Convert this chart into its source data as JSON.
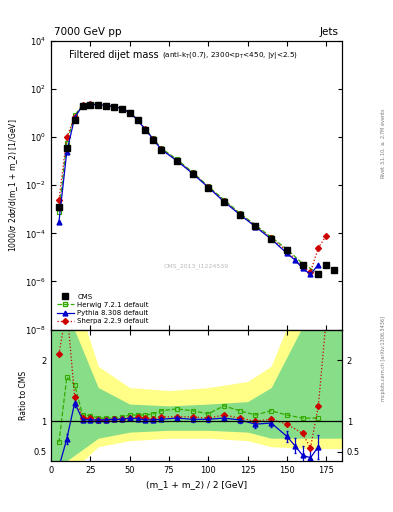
{
  "title_left": "7000 GeV pp",
  "title_right": "Jets",
  "plot_title_main": "Filtered dijet mass ",
  "plot_title_sub": "(anti-k_{T}(0.7), 2300<p_{T}<450, |y|<2.5)",
  "ylabel_main": "1000/σ 2dσ/d(m_1 + m_2) [1/GeV]",
  "ylabel_ratio": "Ratio to CMS",
  "xlabel": "(m_1 + m_2) / 2 [GeV]",
  "watermark": "CMS_2013_I1224539",
  "cms_x": [
    5,
    10,
    15,
    20,
    25,
    30,
    35,
    40,
    45,
    50,
    55,
    60,
    65,
    70,
    80,
    90,
    100,
    110,
    120,
    130,
    140,
    150,
    160,
    170,
    175,
    180
  ],
  "cms_y": [
    0.0012,
    0.35,
    5.0,
    20.0,
    22.0,
    22.0,
    20.0,
    18.0,
    15.0,
    10.0,
    5.0,
    2.0,
    0.8,
    0.3,
    0.1,
    0.03,
    0.008,
    0.002,
    0.0006,
    0.0002,
    6e-05,
    2e-05,
    5e-06,
    2e-06,
    5e-06,
    3e-06
  ],
  "cms_yerr": [
    0.0002,
    0.05,
    0.5,
    1.5,
    1.5,
    1.5,
    1.5,
    1.2,
    1.0,
    0.7,
    0.35,
    0.15,
    0.07,
    0.025,
    0.008,
    0.0025,
    0.0007,
    0.0002,
    5e-05,
    2e-05,
    6e-06,
    2e-06,
    5e-07,
    3e-07,
    1e-06,
    5e-07
  ],
  "herwig_x": [
    5,
    10,
    15,
    20,
    25,
    30,
    35,
    40,
    45,
    50,
    55,
    60,
    65,
    70,
    80,
    90,
    100,
    110,
    120,
    130,
    140,
    150,
    160,
    170
  ],
  "herwig_y": [
    0.0008,
    0.6,
    8.0,
    22.0,
    24.0,
    23.0,
    21.0,
    19.0,
    16.0,
    11.0,
    5.5,
    2.2,
    0.9,
    0.35,
    0.12,
    0.035,
    0.009,
    0.0025,
    0.0007,
    0.00022,
    7e-05,
    2.2e-05,
    5.5e-06,
    2.2e-06
  ],
  "pythia_x": [
    5,
    10,
    15,
    20,
    25,
    30,
    35,
    40,
    45,
    50,
    55,
    60,
    65,
    70,
    80,
    90,
    100,
    110,
    120,
    130,
    140,
    150,
    155,
    160,
    165,
    170
  ],
  "pythia_y": [
    0.0003,
    0.25,
    6.5,
    20.5,
    22.5,
    22.5,
    20.5,
    18.5,
    15.5,
    10.5,
    5.2,
    2.05,
    0.82,
    0.31,
    0.105,
    0.031,
    0.0082,
    0.0021,
    0.00061,
    0.00019,
    5.8e-05,
    1.5e-05,
    8e-06,
    3.5e-06,
    2e-06,
    5e-06
  ],
  "sherpa_x": [
    5,
    10,
    15,
    20,
    25,
    30,
    35,
    40,
    45,
    50,
    55,
    60,
    65,
    70,
    80,
    90,
    100,
    110,
    120,
    130,
    140,
    150,
    160,
    165,
    170,
    175
  ],
  "sherpa_y": [
    0.0025,
    1.0,
    7.0,
    21.0,
    23.0,
    22.5,
    20.5,
    18.5,
    15.5,
    10.5,
    5.3,
    2.1,
    0.83,
    0.32,
    0.107,
    0.032,
    0.0084,
    0.0022,
    0.00063,
    0.0002,
    6.2e-05,
    1.9e-05,
    4e-06,
    2.5e-06,
    2.5e-05,
    8e-05
  ],
  "ratio_herwig_x": [
    5,
    10,
    15,
    20,
    25,
    30,
    35,
    40,
    45,
    50,
    55,
    60,
    65,
    70,
    80,
    90,
    100,
    110,
    120,
    130,
    140,
    150,
    160,
    170
  ],
  "ratio_herwig_y": [
    0.65,
    1.72,
    1.6,
    1.1,
    1.09,
    1.05,
    1.05,
    1.05,
    1.07,
    1.1,
    1.1,
    1.1,
    1.12,
    1.17,
    1.2,
    1.17,
    1.12,
    1.25,
    1.17,
    1.1,
    1.17,
    1.1,
    1.05,
    1.05
  ],
  "ratio_pythia_x": [
    5,
    10,
    15,
    20,
    25,
    30,
    35,
    40,
    45,
    50,
    55,
    60,
    65,
    70,
    80,
    90,
    100,
    110,
    120,
    130,
    140,
    150,
    155,
    160,
    165,
    170
  ],
  "ratio_pythia_y": [
    0.25,
    0.71,
    1.3,
    1.025,
    1.02,
    1.02,
    1.02,
    1.03,
    1.03,
    1.05,
    1.04,
    1.02,
    1.02,
    1.03,
    1.05,
    1.03,
    1.03,
    1.05,
    1.02,
    0.95,
    0.97,
    0.75,
    0.6,
    0.44,
    0.4,
    0.58
  ],
  "ratio_pythia_err": [
    0.05,
    0.08,
    0.07,
    0.04,
    0.03,
    0.03,
    0.03,
    0.03,
    0.03,
    0.03,
    0.03,
    0.03,
    0.03,
    0.03,
    0.04,
    0.04,
    0.04,
    0.05,
    0.05,
    0.06,
    0.07,
    0.09,
    0.12,
    0.15,
    0.18,
    0.2
  ],
  "ratio_sherpa_x": [
    5,
    10,
    15,
    20,
    25,
    30,
    35,
    40,
    45,
    50,
    55,
    60,
    65,
    70,
    80,
    90,
    100,
    110,
    120,
    130,
    140,
    150,
    160,
    165,
    170,
    175
  ],
  "ratio_sherpa_y": [
    2.1,
    2.86,
    1.4,
    1.05,
    1.05,
    1.02,
    1.02,
    1.03,
    1.03,
    1.05,
    1.06,
    1.05,
    1.04,
    1.07,
    1.07,
    1.07,
    1.05,
    1.1,
    1.05,
    1.0,
    1.03,
    0.95,
    0.8,
    0.56,
    1.25,
    2.67
  ],
  "cms_color": "#000000",
  "herwig_color": "#33aa00",
  "pythia_color": "#0000cc",
  "sherpa_color": "#cc0000",
  "ylim_main": [
    1e-08,
    10000.0
  ],
  "ylim_ratio": [
    0.35,
    2.5
  ],
  "xlim": [
    0,
    185
  ],
  "green_band_x": [
    0,
    10,
    30,
    50,
    75,
    100,
    125,
    140,
    165,
    185
  ],
  "green_band_lo": [
    0.35,
    0.35,
    0.72,
    0.82,
    0.85,
    0.85,
    0.82,
    0.72,
    0.72,
    0.72
  ],
  "green_band_hi": [
    2.8,
    2.8,
    1.55,
    1.28,
    1.25,
    1.28,
    1.32,
    1.55,
    2.8,
    2.8
  ],
  "yellow_band_x": [
    0,
    10,
    30,
    50,
    75,
    100,
    125,
    140,
    165,
    185
  ],
  "yellow_band_lo": [
    0.1,
    0.1,
    0.58,
    0.68,
    0.72,
    0.72,
    0.68,
    0.58,
    0.55,
    0.55
  ],
  "yellow_band_hi": [
    3.5,
    3.5,
    1.9,
    1.55,
    1.5,
    1.55,
    1.65,
    1.9,
    3.5,
    3.5
  ]
}
